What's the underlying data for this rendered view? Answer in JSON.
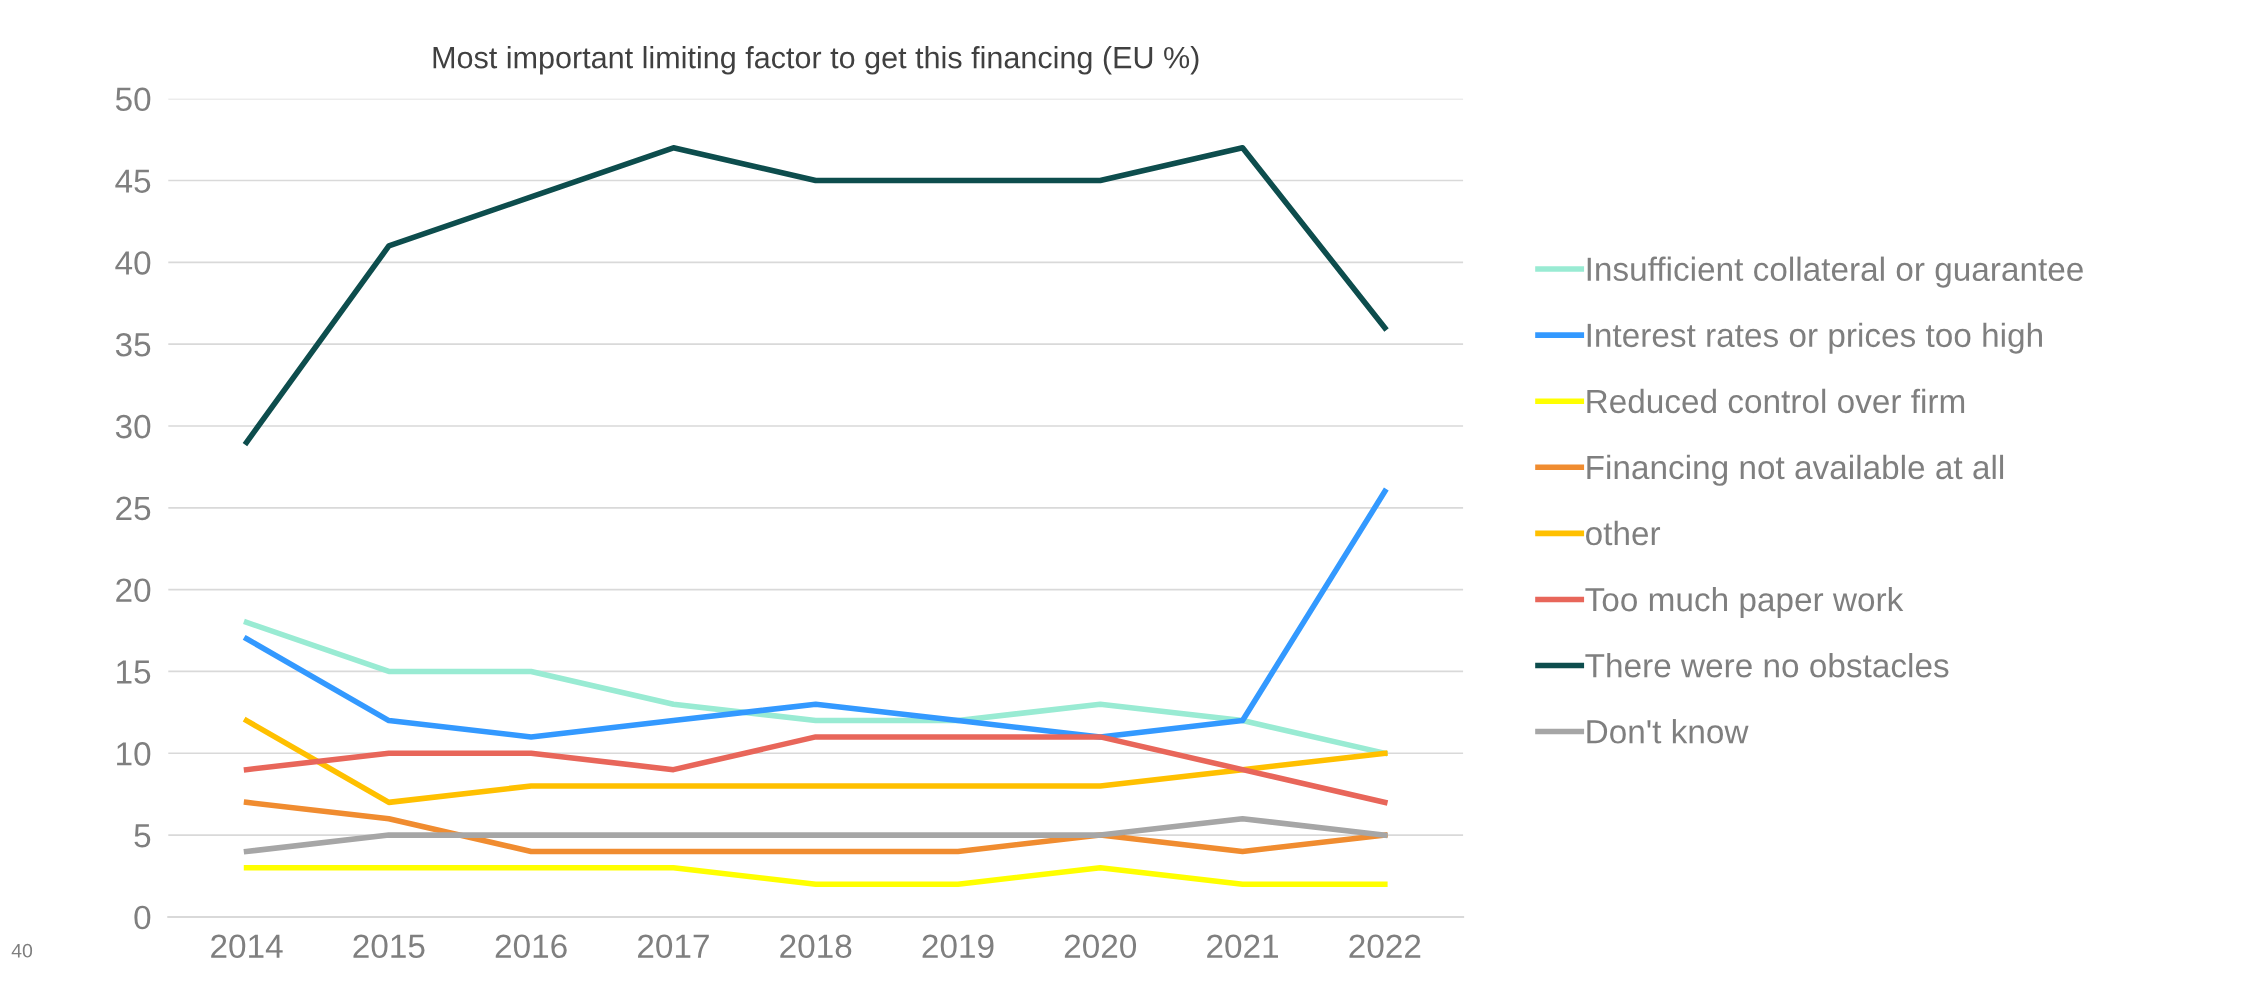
{
  "chart_data": {
    "type": "line",
    "title": "Most important limiting factor to get this financing (EU %)",
    "categories": [
      "2014",
      "2015",
      "2016",
      "2017",
      "2018",
      "2019",
      "2020",
      "2021",
      "2022"
    ],
    "series": [
      {
        "name": "Insufficient collateral or guarantee",
        "color": "#99ebd3",
        "values": [
          18,
          15,
          15,
          13,
          12,
          12,
          13,
          12,
          10
        ]
      },
      {
        "name": "Interest rates or prices too high",
        "color": "#3399ff",
        "values": [
          17,
          12,
          11,
          12,
          13,
          12,
          11,
          12,
          26
        ]
      },
      {
        "name": "Reduced control over firm",
        "color": "#ffff00",
        "values": [
          3,
          3,
          3,
          3,
          2,
          2,
          3,
          2,
          2
        ]
      },
      {
        "name": "Financing not available at all",
        "color": "#f08c30",
        "values": [
          7,
          6,
          4,
          4,
          4,
          4,
          5,
          4,
          5
        ]
      },
      {
        "name": "other",
        "color": "#ffc000",
        "values": [
          12,
          7,
          8,
          8,
          8,
          8,
          8,
          9,
          10
        ]
      },
      {
        "name": "Too much paper work",
        "color": "#e8665a",
        "values": [
          9,
          10,
          10,
          9,
          11,
          11,
          11,
          9,
          7
        ]
      },
      {
        "name": "There were no obstacles",
        "color": "#0d4d4d",
        "values": [
          29,
          41,
          44,
          47,
          45,
          45,
          45,
          47,
          36
        ]
      },
      {
        "name": "Don't know",
        "color": "#a6a6a6",
        "values": [
          4,
          5,
          5,
          5,
          5,
          5,
          5,
          6,
          5
        ]
      }
    ],
    "ylim": [
      0,
      50
    ],
    "yticks": [
      0,
      5,
      10,
      15,
      20,
      25,
      30,
      35,
      40,
      45,
      50
    ],
    "grid": "y",
    "legend": "right",
    "marker": "none",
    "line_style": "solid",
    "annotations": [
      "40"
    ]
  }
}
